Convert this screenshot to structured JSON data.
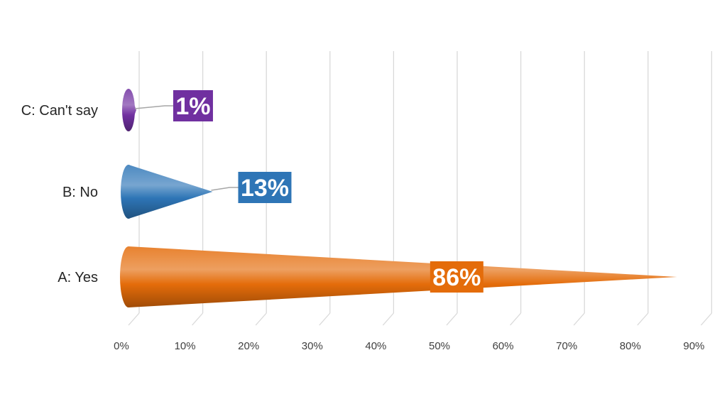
{
  "chart_data": {
    "type": "bar",
    "shape": "cone",
    "orientation": "horizontal",
    "categories": [
      "A: Yes",
      "B: No",
      "C: Can't say"
    ],
    "values": [
      86,
      13,
      1
    ],
    "data_labels": [
      "86%",
      "13%",
      "1%"
    ],
    "colors": [
      "#E46C0A",
      "#2E75B6",
      "#7030A0"
    ],
    "title": "",
    "xlabel": "",
    "ylabel": "",
    "xlim": [
      0,
      90
    ],
    "x_tick_values": [
      0,
      10,
      20,
      30,
      40,
      50,
      60,
      70,
      80,
      90
    ],
    "x_tick_labels": [
      "0%",
      "10%",
      "20%",
      "30%",
      "40%",
      "50%",
      "60%",
      "70%",
      "80%",
      "90%"
    ],
    "grid": true,
    "legend": "none"
  }
}
